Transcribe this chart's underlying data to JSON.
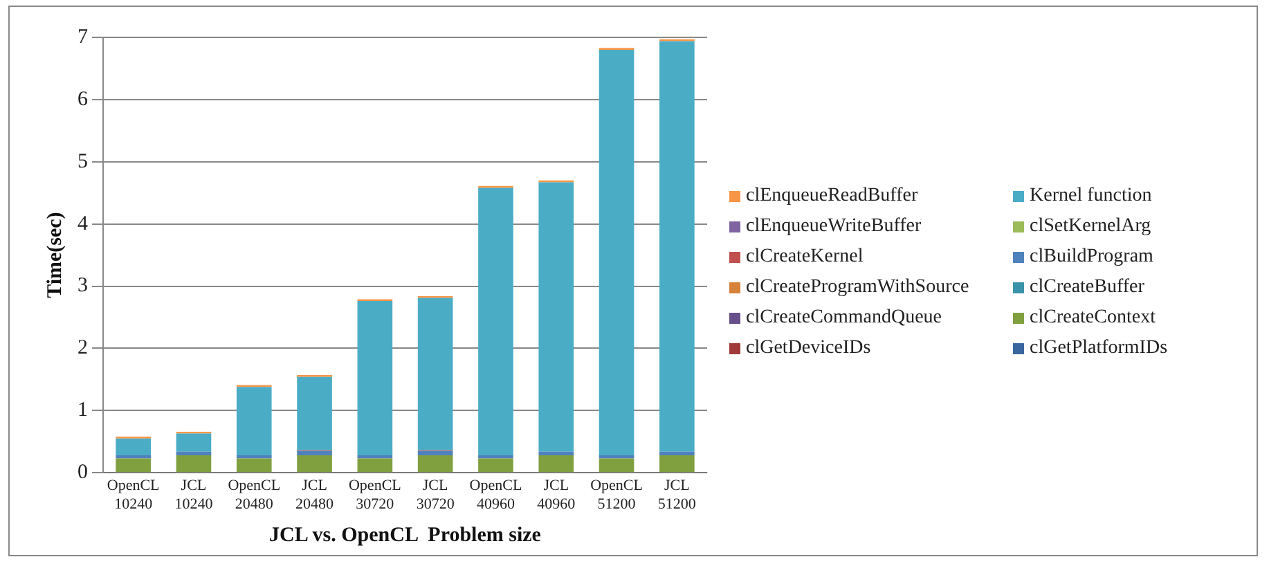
{
  "chart_data": {
    "type": "bar",
    "stacked": true,
    "xlabel": "JCL vs. OpenCL  Problem size",
    "ylabel": "Time(sec)",
    "categories": [
      "OpenCL 10240",
      "JCL 10240",
      "OpenCL 20480",
      "JCL 20480",
      "OpenCL 30720",
      "JCL 30720",
      "OpenCL 40960",
      "JCL 40960",
      "OpenCL 51200",
      "JCL 51200"
    ],
    "ylim": [
      0,
      7
    ],
    "yticks": [
      0,
      1,
      2,
      3,
      4,
      5,
      6,
      7
    ],
    "grid": "y",
    "legend": "right",
    "series": [
      {
        "name": "clGetPlatformIDs",
        "color": "#3a66a0",
        "values": [
          0,
          0,
          0,
          0,
          0,
          0,
          0,
          0,
          0,
          0
        ]
      },
      {
        "name": "clGetDeviceIDs",
        "color": "#a03a3a",
        "values": [
          0,
          0,
          0,
          0,
          0,
          0,
          0,
          0,
          0,
          0
        ]
      },
      {
        "name": "clCreateContext",
        "color": "#80a040",
        "values": [
          0.23,
          0.28,
          0.23,
          0.28,
          0.23,
          0.28,
          0.23,
          0.28,
          0.23,
          0.28
        ]
      },
      {
        "name": "clCreateCommandQueue",
        "color": "#674f8c",
        "values": [
          0,
          0,
          0,
          0,
          0,
          0,
          0,
          0,
          0,
          0
        ]
      },
      {
        "name": "clCreateBuffer",
        "color": "#3a93a8",
        "values": [
          0,
          0,
          0,
          0,
          0,
          0,
          0,
          0,
          0,
          0
        ]
      },
      {
        "name": "clCreateProgramWithSource",
        "color": "#d6823a",
        "values": [
          0,
          0,
          0,
          0,
          0,
          0,
          0,
          0,
          0,
          0
        ]
      },
      {
        "name": "clBuildProgram",
        "color": "#4f81bd",
        "values": [
          0.05,
          0.06,
          0.05,
          0.07,
          0.05,
          0.07,
          0.05,
          0.06,
          0.05,
          0.06
        ]
      },
      {
        "name": "clCreateKernel",
        "color": "#c0504d",
        "values": [
          0,
          0,
          0,
          0.01,
          0,
          0.01,
          0,
          0,
          0,
          0
        ]
      },
      {
        "name": "clSetKernelArg",
        "color": "#9bbb59",
        "values": [
          0,
          0,
          0,
          0,
          0,
          0,
          0,
          0,
          0,
          0
        ]
      },
      {
        "name": "clEnqueueWriteBuffer",
        "color": "#8064a2",
        "values": [
          0,
          0,
          0,
          0,
          0,
          0,
          0,
          0,
          0,
          0
        ]
      },
      {
        "name": "Kernel function",
        "color": "#4bacc6",
        "values": [
          0.27,
          0.29,
          1.1,
          1.18,
          2.48,
          2.45,
          4.3,
          4.33,
          6.52,
          6.6
        ]
      },
      {
        "name": "clEnqueueReadBuffer",
        "color": "#f79646",
        "values": [
          0.03,
          0.03,
          0.03,
          0.03,
          0.03,
          0.03,
          0.03,
          0.03,
          0.03,
          0.03
        ]
      }
    ]
  }
}
